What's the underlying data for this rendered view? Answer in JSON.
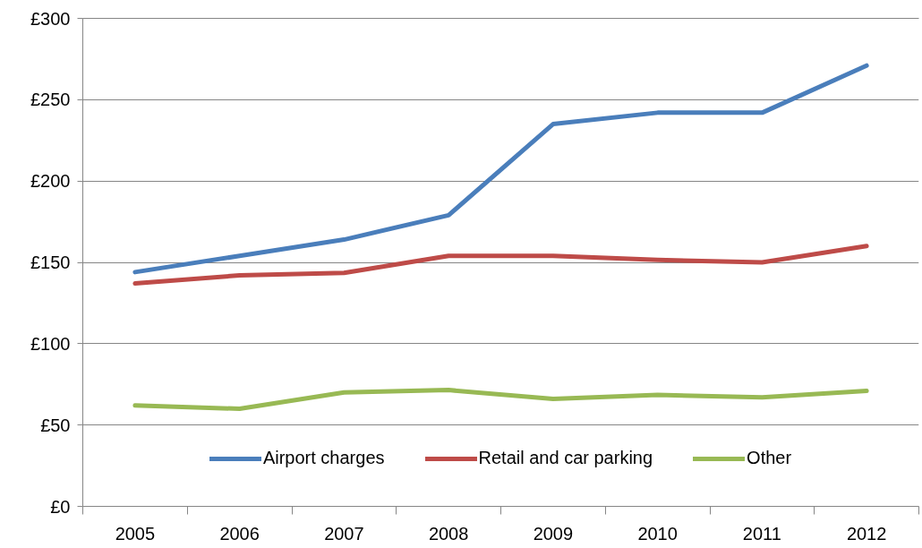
{
  "chart_data": {
    "type": "line",
    "categories": [
      "2005",
      "2006",
      "2007",
      "2008",
      "2009",
      "2010",
      "2011",
      "2012"
    ],
    "series": [
      {
        "name": "Airport charges",
        "color": "#4a7ebb",
        "values": [
          144,
          154,
          164,
          179,
          235,
          242,
          242,
          271
        ]
      },
      {
        "name": "Retail and car parking",
        "color": "#be4b48",
        "values": [
          137,
          142,
          143.5,
          154,
          154,
          151.5,
          150,
          160
        ]
      },
      {
        "name": "Other",
        "color": "#98b954",
        "values": [
          62,
          60,
          70,
          71.5,
          66,
          68.5,
          67,
          71
        ]
      }
    ],
    "ylim": [
      0,
      300
    ],
    "yticks": [
      {
        "value": 0,
        "label": "£0"
      },
      {
        "value": 50,
        "label": "£50"
      },
      {
        "value": 100,
        "label": "£100"
      },
      {
        "value": 150,
        "label": "£150"
      },
      {
        "value": 200,
        "label": "£200"
      },
      {
        "value": 250,
        "label": "£250"
      },
      {
        "value": 300,
        "label": "£300"
      }
    ],
    "grid": "y",
    "legend": "bottom",
    "line_style": "solid"
  }
}
